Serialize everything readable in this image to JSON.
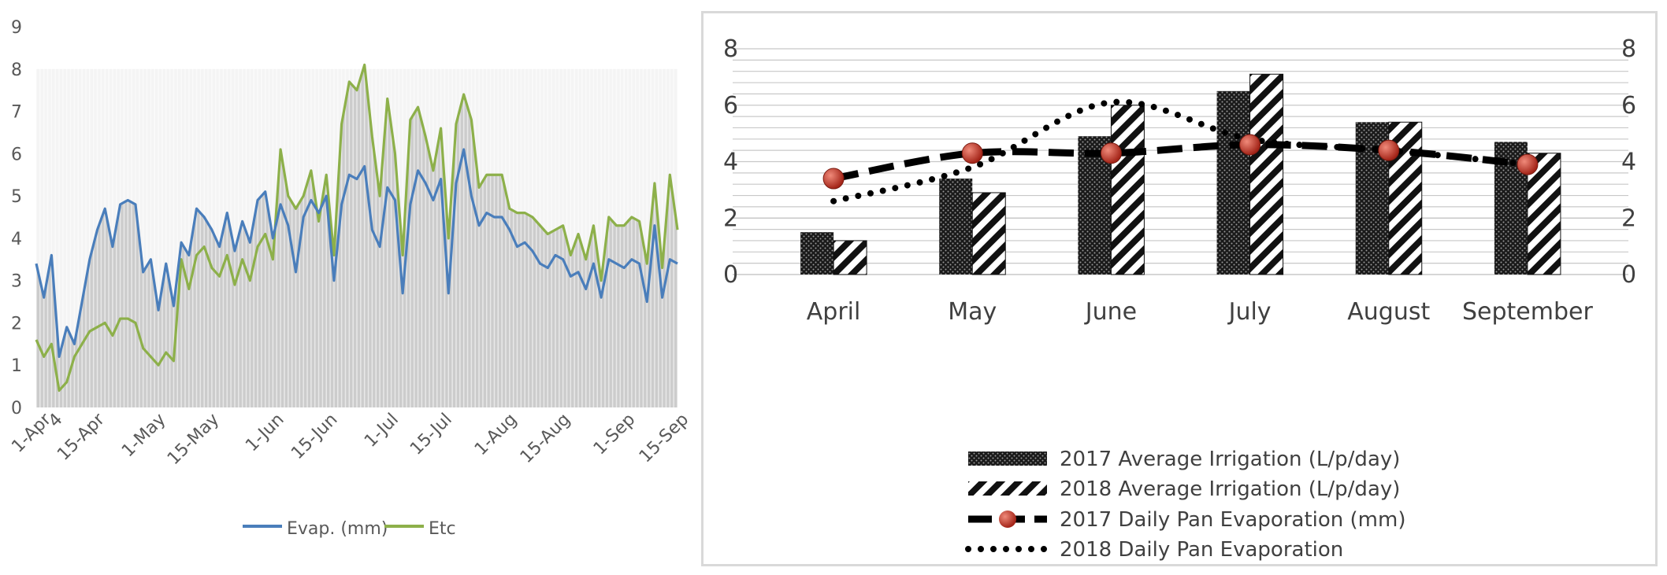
{
  "colors": {
    "evap": "#4a7ebb",
    "etc": "#8db04a",
    "grid_left": "#d9d9d9",
    "fill_area": "#c8c8c8",
    "bar_dark": "#222222",
    "bar_hatch": "#111111",
    "marker_red": "#c0392b",
    "gridline_right": "#c8c8c8"
  },
  "chart_data": [
    {
      "type": "line",
      "x_tick_labels": [
        "1-Apr",
        "4",
        "15-Apr",
        "1-May",
        "15-May",
        "1-Jun",
        "15-Jun",
        "1-Jul",
        "15-Jul",
        "1-Aug",
        "15-Aug",
        "1-Sep",
        "15-Sep"
      ],
      "x_tick_days": [
        0,
        3,
        14,
        30,
        44,
        61,
        75,
        91,
        105,
        122,
        136,
        153,
        167
      ],
      "x_range_days": [
        0,
        168
      ],
      "ylim": [
        0,
        9
      ],
      "y_ticks": [
        0,
        1,
        2,
        3,
        4,
        5,
        6,
        7,
        8,
        9
      ],
      "grid": false,
      "legend_position": "bottom",
      "series": [
        {
          "name": "Evap. (mm)",
          "x_days": [
            0,
            2,
            4,
            6,
            8,
            10,
            12,
            14,
            16,
            18,
            20,
            22,
            24,
            26,
            28,
            30,
            32,
            34,
            36,
            38,
            40,
            42,
            44,
            46,
            48,
            50,
            52,
            54,
            56,
            58,
            60,
            62,
            64,
            66,
            68,
            70,
            72,
            74,
            76,
            78,
            80,
            82,
            84,
            86,
            88,
            90,
            92,
            94,
            96,
            98,
            100,
            102,
            104,
            106,
            108,
            110,
            112,
            114,
            116,
            118,
            120,
            122,
            124,
            126,
            128,
            130,
            132,
            134,
            136,
            138,
            140,
            142,
            144,
            146,
            148,
            150,
            152,
            154,
            156,
            158,
            160,
            162,
            164,
            166,
            168
          ],
          "values": [
            3.4,
            2.6,
            3.6,
            1.2,
            1.9,
            1.5,
            2.5,
            3.5,
            4.2,
            4.7,
            3.8,
            4.8,
            4.9,
            4.8,
            3.2,
            3.5,
            2.3,
            3.4,
            2.4,
            3.9,
            3.6,
            4.7,
            4.5,
            4.2,
            3.8,
            4.6,
            3.7,
            4.4,
            3.9,
            4.9,
            5.1,
            4.0,
            4.8,
            4.3,
            3.2,
            4.5,
            4.9,
            4.6,
            5.0,
            3.0,
            4.8,
            5.5,
            5.4,
            5.7,
            4.2,
            3.8,
            5.2,
            4.9,
            2.7,
            4.8,
            5.6,
            5.3,
            4.9,
            5.4,
            2.7,
            5.3,
            6.1,
            5.0,
            4.3,
            4.6,
            4.5,
            4.5,
            4.2,
            3.8,
            3.9,
            3.7,
            3.4,
            3.3,
            3.6,
            3.5,
            3.1,
            3.2,
            2.8,
            3.4,
            2.6,
            3.5,
            3.4,
            3.3,
            3.5,
            3.4,
            2.5,
            4.3,
            2.6,
            3.5,
            3.4
          ]
        },
        {
          "name": "Etc",
          "x_days": [
            0,
            2,
            4,
            6,
            8,
            10,
            12,
            14,
            16,
            18,
            20,
            22,
            24,
            26,
            28,
            30,
            32,
            34,
            36,
            38,
            40,
            42,
            44,
            46,
            48,
            50,
            52,
            54,
            56,
            58,
            60,
            62,
            64,
            66,
            68,
            70,
            72,
            74,
            76,
            78,
            80,
            82,
            84,
            86,
            88,
            90,
            92,
            94,
            96,
            98,
            100,
            102,
            104,
            106,
            108,
            110,
            112,
            114,
            116,
            118,
            120,
            122,
            124,
            126,
            128,
            130,
            132,
            134,
            136,
            138,
            140,
            142,
            144,
            146,
            148,
            150,
            152,
            154,
            156,
            158,
            160,
            162,
            164,
            166,
            168
          ],
          "values": [
            1.6,
            1.2,
            1.5,
            0.4,
            0.6,
            1.2,
            1.5,
            1.8,
            1.9,
            2.0,
            1.7,
            2.1,
            2.1,
            2.0,
            1.4,
            1.2,
            1.0,
            1.3,
            1.1,
            3.5,
            2.8,
            3.6,
            3.8,
            3.3,
            3.1,
            3.6,
            2.9,
            3.5,
            3.0,
            3.8,
            4.1,
            3.5,
            6.1,
            5.0,
            4.7,
            5.0,
            5.6,
            4.4,
            5.5,
            3.6,
            6.7,
            7.7,
            7.5,
            8.1,
            6.4,
            5.0,
            7.3,
            6.0,
            3.6,
            6.8,
            7.1,
            6.4,
            5.6,
            6.6,
            4.0,
            6.7,
            7.4,
            6.8,
            5.2,
            5.5,
            5.5,
            5.5,
            4.7,
            4.6,
            4.6,
            4.5,
            4.3,
            4.1,
            4.2,
            4.3,
            3.6,
            4.1,
            3.5,
            4.3,
            3.0,
            4.5,
            4.3,
            4.3,
            4.5,
            4.4,
            3.4,
            5.3,
            3.3,
            5.5,
            4.2
          ]
        }
      ]
    },
    {
      "type": "bar",
      "categories": [
        "April",
        "May",
        "June",
        "July",
        "August",
        "September"
      ],
      "ylim": [
        0,
        8
      ],
      "y_ticks": [
        0,
        2,
        4,
        6,
        8
      ],
      "secondary_ylim": [
        0,
        8
      ],
      "secondary_y_ticks": [
        0,
        2,
        4,
        6,
        8
      ],
      "grid": true,
      "legend_position": "bottom",
      "series": [
        {
          "name": "2017 Average Irrigation (L/p/day)",
          "kind": "bar",
          "pattern": "dots",
          "values": [
            1.5,
            3.4,
            4.9,
            6.5,
            5.4,
            4.7
          ]
        },
        {
          "name": "2018 Average Irrigation (L/p/day)",
          "kind": "bar",
          "pattern": "diagonal",
          "values": [
            1.2,
            2.9,
            6.0,
            7.1,
            5.4,
            4.3
          ]
        },
        {
          "name": "2017 Daily Pan Evaporation (mm)",
          "kind": "line",
          "style": "dashed-marker",
          "values": [
            3.4,
            4.3,
            4.3,
            4.6,
            4.4,
            3.9
          ]
        },
        {
          "name": "2018 Daily Pan Evaporation",
          "kind": "line",
          "style": "dotted",
          "values": [
            2.6,
            3.8,
            6.1,
            4.8,
            4.4,
            3.9
          ]
        }
      ]
    }
  ]
}
